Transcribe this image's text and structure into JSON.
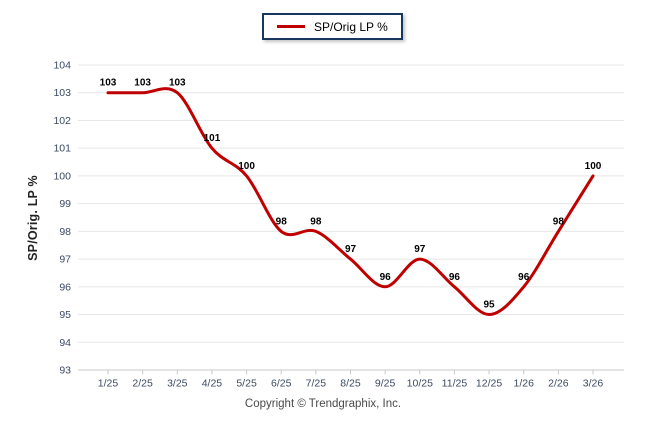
{
  "legend": {
    "label": "SP/Orig LP %"
  },
  "footer": {
    "copyright": "Copyright © Trendgraphix, Inc."
  },
  "colors": {
    "series": "#c00000",
    "legend_border": "#17375e",
    "grid": "#e7e7e7",
    "axis": "#c9c9c9",
    "tick_label": "#3b4a61",
    "data_label": "#000000",
    "axis_title": "#222222",
    "copyright": "#4a4a4a",
    "background": "#ffffff"
  },
  "chart_data": {
    "type": "line",
    "title": "",
    "categories": [
      "1/25",
      "2/25",
      "3/25",
      "4/25",
      "5/25",
      "6/25",
      "7/25",
      "8/25",
      "9/25",
      "10/25",
      "11/25",
      "12/25",
      "1/26",
      "2/26",
      "3/26"
    ],
    "series": [
      {
        "name": "SP/Orig LP %",
        "color": "#c00000",
        "values": [
          103,
          103,
          103,
          101,
          100,
          98,
          98,
          97,
          96,
          97,
          96,
          95,
          96,
          98,
          100
        ]
      }
    ],
    "xlabel": "",
    "ylabel": "SP/Orig. LP %",
    "ylim": [
      93,
      104
    ],
    "ytick_step": 1,
    "grid": true,
    "smooth": true,
    "data_labels": true,
    "legend_position": "top-center"
  }
}
